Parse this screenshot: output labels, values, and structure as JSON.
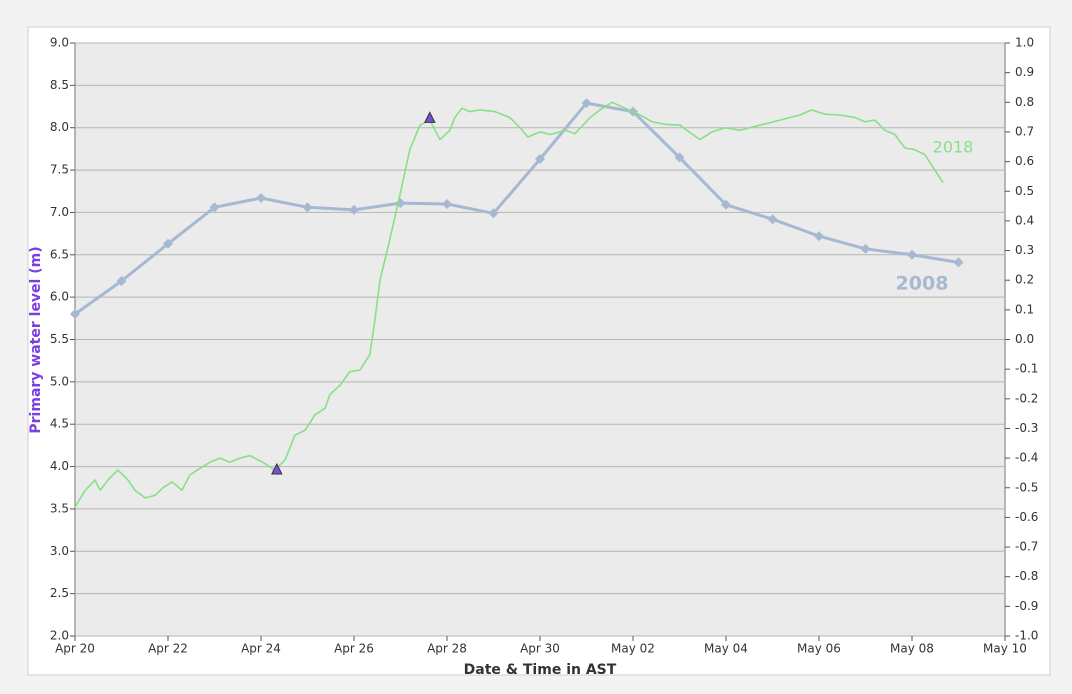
{
  "chart_data": {
    "type": "line",
    "y_label": "Primary water level (m)",
    "x_label": "Date & Time in AST",
    "xlim": [
      0,
      20
    ],
    "xticks": [
      {
        "value": 0,
        "label": "Apr 20"
      },
      {
        "value": 2,
        "label": "Apr 22"
      },
      {
        "value": 4,
        "label": "Apr 24"
      },
      {
        "value": 6,
        "label": "Apr 26"
      },
      {
        "value": 8,
        "label": "Apr 28"
      },
      {
        "value": 10,
        "label": "Apr 30"
      },
      {
        "value": 12,
        "label": "May 02"
      },
      {
        "value": 14,
        "label": "May 04"
      },
      {
        "value": 16,
        "label": "May 06"
      },
      {
        "value": 18,
        "label": "May 08"
      },
      {
        "value": 20,
        "label": "May 10"
      }
    ],
    "ylim": [
      2,
      9
    ],
    "yticks": [
      {
        "value": 2,
        "label": "2.0"
      },
      2.5,
      {
        "value": 3,
        "label": "3.0"
      },
      3.5,
      {
        "value": 4,
        "label": "4.0"
      },
      4.5,
      {
        "value": 5,
        "label": "5.0"
      },
      5.5,
      {
        "value": 6,
        "label": "6.0"
      },
      6.5,
      {
        "value": 7,
        "label": "7.0"
      },
      7.5,
      {
        "value": 8,
        "label": "8.0"
      },
      8.5,
      {
        "value": 9,
        "label": "9.0"
      }
    ],
    "y2lim": [
      -1,
      1
    ],
    "y2ticks": [
      {
        "value": -1,
        "label": "-1.0"
      },
      -0.9,
      -0.8,
      -0.7,
      -0.6,
      -0.5,
      -0.4,
      -0.3,
      -0.2,
      -0.1,
      {
        "value": 0,
        "label": "0.0"
      },
      0.1,
      0.2,
      0.3,
      0.4,
      0.5,
      0.6,
      0.7,
      0.8,
      0.9,
      {
        "value": 1,
        "label": "1.0"
      }
    ],
    "grid": true,
    "series": [
      {
        "name": "2008",
        "color": "#a7b8d2",
        "x": [
          0,
          1,
          2,
          3,
          4,
          5,
          6,
          7,
          8,
          9,
          10,
          11,
          12,
          13,
          14,
          15,
          16,
          17,
          18,
          19
        ],
        "values": [
          5.8,
          6.19,
          6.63,
          7.06,
          7.17,
          7.06,
          7.03,
          7.11,
          7.1,
          6.99,
          7.63,
          8.29,
          8.19,
          7.65,
          7.09,
          6.92,
          6.72,
          6.57,
          6.5,
          6.41
        ]
      },
      {
        "name": "2018",
        "color": "#86e086",
        "x": [
          0,
          0.22,
          0.43,
          0.54,
          0.71,
          0.92,
          1.14,
          1.29,
          1.51,
          1.72,
          1.89,
          2.09,
          2.3,
          2.47,
          2.69,
          2.9,
          3.12,
          3.33,
          3.55,
          3.76,
          4.04,
          4.3,
          4.52,
          4.73,
          4.95,
          5.16,
          5.38,
          5.48,
          5.7,
          5.91,
          6.13,
          6.34,
          6.45,
          6.56,
          6.77,
          6.99,
          7.2,
          7.42,
          7.63,
          7.85,
          8.06,
          8.17,
          8.32,
          8.49,
          8.71,
          9.03,
          9.35,
          9.57,
          9.74,
          10.0,
          10.22,
          10.54,
          10.75,
          11.08,
          11.29,
          11.55,
          11.83,
          12.15,
          12.41,
          12.69,
          13.01,
          13.44,
          13.7,
          13.98,
          14.3,
          14.73,
          15.16,
          15.59,
          15.85,
          16.13,
          16.45,
          16.77,
          16.99,
          17.2,
          17.42,
          17.63,
          17.85,
          18.06,
          18.28,
          18.49,
          18.67
        ],
        "values": [
          3.52,
          3.72,
          3.84,
          3.72,
          3.84,
          3.96,
          3.84,
          3.72,
          3.63,
          3.66,
          3.75,
          3.82,
          3.72,
          3.9,
          3.98,
          4.05,
          4.1,
          4.05,
          4.1,
          4.13,
          4.05,
          3.96,
          4.08,
          4.37,
          4.43,
          4.61,
          4.69,
          4.85,
          4.96,
          5.12,
          5.14,
          5.32,
          5.73,
          6.2,
          6.68,
          7.21,
          7.74,
          8.03,
          8.09,
          7.86,
          7.97,
          8.12,
          8.23,
          8.19,
          8.21,
          8.19,
          8.12,
          8.0,
          7.89,
          7.95,
          7.92,
          7.97,
          7.93,
          8.12,
          8.21,
          8.3,
          8.23,
          8.15,
          8.07,
          8.04,
          8.03,
          7.86,
          7.95,
          8.0,
          7.97,
          8.03,
          8.09,
          8.15,
          8.21,
          8.16,
          8.15,
          8.12,
          8.07,
          8.09,
          7.97,
          7.92,
          7.76,
          7.74,
          7.68,
          7.5,
          7.35
        ]
      }
    ],
    "markers": {
      "color": "#7a4fd6",
      "x": [
        4.34,
        7.63
      ],
      "values": [
        3.96,
        8.11
      ]
    }
  }
}
